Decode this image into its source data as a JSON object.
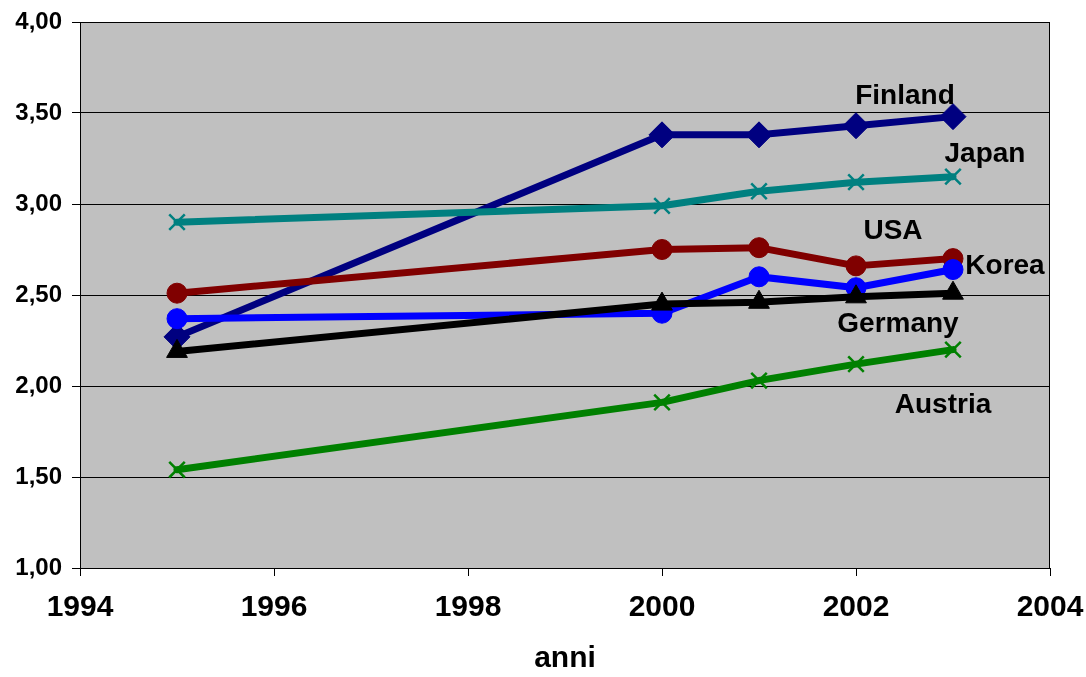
{
  "chart_data": {
    "type": "line",
    "xlabel": "anni",
    "x": [
      1995,
      2000,
      2001,
      2002,
      2003
    ],
    "series": [
      {
        "name": "Finland",
        "color": "#000080",
        "marker": "diamond",
        "values": [
          2.27,
          3.38,
          3.38,
          3.43,
          3.48
        ]
      },
      {
        "name": "Japan",
        "color": "#008080",
        "marker": "cross",
        "values": [
          2.9,
          2.99,
          3.07,
          3.12,
          3.15
        ]
      },
      {
        "name": "USA",
        "color": "#800000",
        "marker": "circle",
        "values": [
          2.51,
          2.75,
          2.76,
          2.66,
          2.7
        ]
      },
      {
        "name": "Korea",
        "color": "#0000ff",
        "marker": "circle",
        "values": [
          2.37,
          2.4,
          2.6,
          2.54,
          2.64
        ]
      },
      {
        "name": "Germany",
        "color": "#000000",
        "marker": "triangle",
        "values": [
          2.19,
          2.45,
          2.46,
          2.49,
          2.51
        ]
      },
      {
        "name": "Austria",
        "color": "#008000",
        "marker": "cross",
        "values": [
          1.54,
          1.91,
          2.03,
          2.12,
          2.2
        ]
      }
    ],
    "xlim": [
      1994,
      2004
    ],
    "xticks": [
      1994,
      1996,
      1998,
      2000,
      2002,
      2004
    ],
    "ylim": [
      1,
      4
    ],
    "yticks": [
      {
        "value": 1,
        "label": "1,00"
      },
      {
        "value": 1.5,
        "label": "1,50"
      },
      {
        "value": 2,
        "label": "2,00"
      },
      {
        "value": 2.5,
        "label": "2,50"
      },
      {
        "value": 3,
        "label": "3,00"
      },
      {
        "value": 3.5,
        "label": "3,50"
      },
      {
        "value": 4,
        "label": "4,00"
      }
    ],
    "grid": "y",
    "legend": false,
    "line_style": "solid"
  }
}
